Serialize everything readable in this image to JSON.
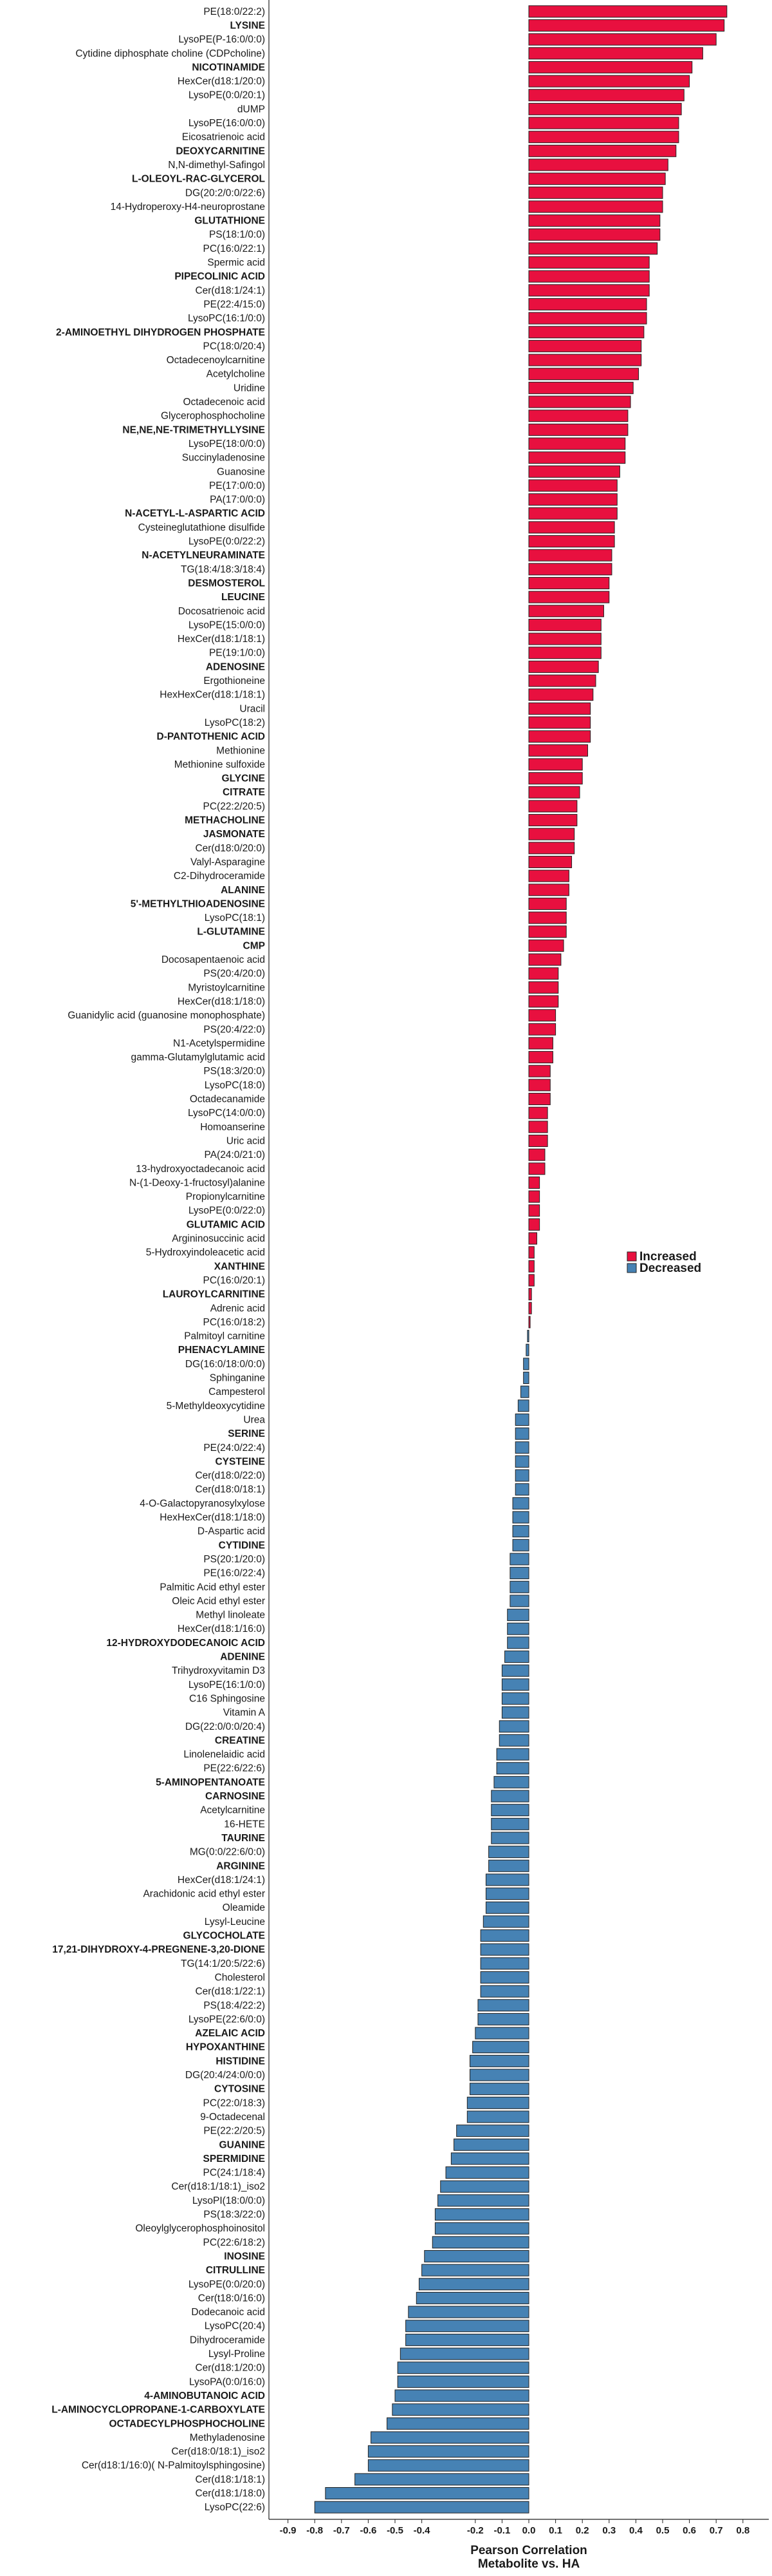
{
  "chart_data": {
    "type": "bar",
    "orientation": "horizontal",
    "xlabel_lines": [
      "Pearson Correlation",
      "Metabolite vs. HA"
    ],
    "ylabel": "",
    "xlim": [
      -0.9,
      0.8
    ],
    "xticks": [
      -0.9,
      -0.8,
      -0.7,
      -0.6,
      -0.5,
      -0.4,
      -0.2,
      -0.1,
      0.0,
      0.1,
      0.2,
      0.3,
      0.4,
      0.5,
      0.6,
      0.7,
      0.8
    ],
    "xtick_labels": [
      "-0.9",
      "-0.8",
      "-0.7",
      "-0.6",
      "-0.5",
      "-0.4",
      "-0.2",
      "-0.1",
      "0.0",
      "0.1",
      "0.2",
      "0.3",
      "0.4",
      "0.5",
      "0.6",
      "0.7",
      "0.8"
    ],
    "grid": false,
    "legend_position": "right",
    "legend": [
      {
        "label": "Increased",
        "color": "#e8103f"
      },
      {
        "label": "Decreased",
        "color": "#4682b4"
      }
    ],
    "colors": {
      "increased": "#e8103f",
      "decreased": "#4682b4",
      "edge": "#222222"
    },
    "categories": [
      {
        "name": "PE(18:0/22:2)",
        "value": 0.74
      },
      {
        "name": "LYSINE",
        "value": 0.73,
        "bold": true
      },
      {
        "name": "LysoPE(P-16:0/0:0)",
        "value": 0.7
      },
      {
        "name": "Cytidine diphosphate choline (CDPcholine)",
        "value": 0.65
      },
      {
        "name": "NICOTINAMIDE",
        "value": 0.61,
        "bold": true
      },
      {
        "name": "HexCer(d18:1/20:0)",
        "value": 0.6
      },
      {
        "name": "LysoPE(0:0/20:1)",
        "value": 0.58
      },
      {
        "name": "dUMP",
        "value": 0.57
      },
      {
        "name": "LysoPE(16:0/0:0)",
        "value": 0.56
      },
      {
        "name": "Eicosatrienoic acid",
        "value": 0.56
      },
      {
        "name": "DEOXYCARNITINE",
        "value": 0.55,
        "bold": true
      },
      {
        "name": "N,N-dimethyl-Safingol",
        "value": 0.52
      },
      {
        "name": "L-OLEOYL-RAC-GLYCEROL",
        "value": 0.51,
        "bold": true
      },
      {
        "name": "DG(20:2/0:0/22:6)",
        "value": 0.5
      },
      {
        "name": "14-Hydroperoxy-H4-neuroprostane",
        "value": 0.5
      },
      {
        "name": "GLUTATHIONE",
        "value": 0.49,
        "bold": true
      },
      {
        "name": "PS(18:1/0:0)",
        "value": 0.49
      },
      {
        "name": "PC(16:0/22:1)",
        "value": 0.48
      },
      {
        "name": "Spermic acid",
        "value": 0.45
      },
      {
        "name": "PIPECOLINIC ACID",
        "value": 0.45,
        "bold": true
      },
      {
        "name": "Cer(d18:1/24:1)",
        "value": 0.45
      },
      {
        "name": "PE(22:4/15:0)",
        "value": 0.44
      },
      {
        "name": "LysoPC(16:1/0:0)",
        "value": 0.44
      },
      {
        "name": "2-AMINOETHYL DIHYDROGEN PHOSPHATE",
        "value": 0.43,
        "bold": true
      },
      {
        "name": "PC(18:0/20:4)",
        "value": 0.42
      },
      {
        "name": "Octadecenoylcarnitine",
        "value": 0.42
      },
      {
        "name": "Acetylcholine",
        "value": 0.41
      },
      {
        "name": "Uridine",
        "value": 0.39
      },
      {
        "name": "Octadecenoic acid",
        "value": 0.38
      },
      {
        "name": "Glycerophosphocholine",
        "value": 0.37
      },
      {
        "name": "NE,NE,NE-TRIMETHYLLYSINE",
        "value": 0.37,
        "bold": true
      },
      {
        "name": "LysoPE(18:0/0:0)",
        "value": 0.36
      },
      {
        "name": "Succinyladenosine",
        "value": 0.36
      },
      {
        "name": "Guanosine",
        "value": 0.34
      },
      {
        "name": "PE(17:0/0:0)",
        "value": 0.33
      },
      {
        "name": "PA(17:0/0:0)",
        "value": 0.33
      },
      {
        "name": "N-ACETYL-L-ASPARTIC ACID",
        "value": 0.33,
        "bold": true
      },
      {
        "name": "Cysteineglutathione disulfide",
        "value": 0.32
      },
      {
        "name": "LysoPE(0:0/22:2)",
        "value": 0.32
      },
      {
        "name": "N-ACETYLNEURAMINATE",
        "value": 0.31,
        "bold": true
      },
      {
        "name": "TG(18:4/18:3/18:4)",
        "value": 0.31
      },
      {
        "name": "DESMOSTEROL",
        "value": 0.3,
        "bold": true
      },
      {
        "name": "LEUCINE",
        "value": 0.3,
        "bold": true
      },
      {
        "name": "Docosatrienoic acid",
        "value": 0.28
      },
      {
        "name": "LysoPE(15:0/0:0)",
        "value": 0.27
      },
      {
        "name": "HexCer(d18:1/18:1)",
        "value": 0.27
      },
      {
        "name": "PE(19:1/0:0)",
        "value": 0.27
      },
      {
        "name": "ADENOSINE",
        "value": 0.26,
        "bold": true
      },
      {
        "name": "Ergothioneine",
        "value": 0.25
      },
      {
        "name": "HexHexCer(d18:1/18:1)",
        "value": 0.24
      },
      {
        "name": "Uracil",
        "value": 0.23
      },
      {
        "name": "LysoPC(18:2)",
        "value": 0.23
      },
      {
        "name": "D-PANTOTHENIC ACID",
        "value": 0.23,
        "bold": true
      },
      {
        "name": "Methionine",
        "value": 0.22
      },
      {
        "name": "Methionine sulfoxide",
        "value": 0.2
      },
      {
        "name": "GLYCINE",
        "value": 0.2,
        "bold": true
      },
      {
        "name": "CITRATE",
        "value": 0.19,
        "bold": true
      },
      {
        "name": "PC(22:2/20:5)",
        "value": 0.18
      },
      {
        "name": "METHACHOLINE",
        "value": 0.18,
        "bold": true
      },
      {
        "name": "JASMONATE",
        "value": 0.17,
        "bold": true
      },
      {
        "name": "Cer(d18:0/20:0)",
        "value": 0.17
      },
      {
        "name": "Valyl-Asparagine",
        "value": 0.16
      },
      {
        "name": "C2-Dihydroceramide",
        "value": 0.15
      },
      {
        "name": "ALANINE",
        "value": 0.15,
        "bold": true
      },
      {
        "name": "5'-METHYLTHIOADENOSINE",
        "value": 0.14,
        "bold": true
      },
      {
        "name": "LysoPC(18:1)",
        "value": 0.14
      },
      {
        "name": "L-GLUTAMINE",
        "value": 0.14,
        "bold": true
      },
      {
        "name": "CMP",
        "value": 0.13,
        "bold": true
      },
      {
        "name": "Docosapentaenoic acid",
        "value": 0.12
      },
      {
        "name": "PS(20:4/20:0)",
        "value": 0.11
      },
      {
        "name": "Myristoylcarnitine",
        "value": 0.11
      },
      {
        "name": "HexCer(d18:1/18:0)",
        "value": 0.11
      },
      {
        "name": "Guanidylic acid (guanosine monophosphate)",
        "value": 0.1
      },
      {
        "name": "PS(20:4/22:0)",
        "value": 0.1
      },
      {
        "name": "N1-Acetylspermidine",
        "value": 0.09
      },
      {
        "name": "gamma-Glutamylglutamic acid",
        "value": 0.09
      },
      {
        "name": "PS(18:3/20:0)",
        "value": 0.08
      },
      {
        "name": "LysoPC(18:0)",
        "value": 0.08
      },
      {
        "name": "Octadecanamide",
        "value": 0.08
      },
      {
        "name": "LysoPC(14:0/0:0)",
        "value": 0.07
      },
      {
        "name": "Homoanserine",
        "value": 0.07
      },
      {
        "name": "Uric acid",
        "value": 0.07
      },
      {
        "name": "PA(24:0/21:0)",
        "value": 0.06
      },
      {
        "name": "13-hydroxyoctadecanoic acid",
        "value": 0.06
      },
      {
        "name": "N-(1-Deoxy-1-fructosyl)alanine",
        "value": 0.04
      },
      {
        "name": "Propionylcarnitine",
        "value": 0.04
      },
      {
        "name": "LysoPE(0:0/22:0)",
        "value": 0.04
      },
      {
        "name": "GLUTAMIC ACID",
        "value": 0.04,
        "bold": true
      },
      {
        "name": "Argininosuccinic acid",
        "value": 0.03
      },
      {
        "name": "5-Hydroxyindoleacetic acid",
        "value": 0.02
      },
      {
        "name": "XANTHINE",
        "value": 0.02,
        "bold": true
      },
      {
        "name": "PC(16:0/20:1)",
        "value": 0.02
      },
      {
        "name": "LAUROYLCARNITINE",
        "value": 0.01,
        "bold": true
      },
      {
        "name": "Adrenic acid",
        "value": 0.01
      },
      {
        "name": "PC(16:0/18:2)",
        "value": 0.005
      },
      {
        "name": "Palmitoyl carnitine",
        "value": -0.005
      },
      {
        "name": "PHENACYLAMINE",
        "value": -0.01,
        "bold": true
      },
      {
        "name": "DG(16:0/18:0/0:0)",
        "value": -0.02
      },
      {
        "name": "Sphinganine",
        "value": -0.02
      },
      {
        "name": "Campesterol",
        "value": -0.03
      },
      {
        "name": "5-Methyldeoxycytidine",
        "value": -0.04
      },
      {
        "name": "Urea",
        "value": -0.05
      },
      {
        "name": "SERINE",
        "value": -0.05,
        "bold": true
      },
      {
        "name": "PE(24:0/22:4)",
        "value": -0.05
      },
      {
        "name": "CYSTEINE",
        "value": -0.05,
        "bold": true
      },
      {
        "name": "Cer(d18:0/22:0)",
        "value": -0.05
      },
      {
        "name": "Cer(d18:0/18:1)",
        "value": -0.05
      },
      {
        "name": "4-O-Galactopyranosylxylose",
        "value": -0.06
      },
      {
        "name": "HexHexCer(d18:1/18:0)",
        "value": -0.06
      },
      {
        "name": "D-Aspartic acid",
        "value": -0.06
      },
      {
        "name": "CYTIDINE",
        "value": -0.06,
        "bold": true
      },
      {
        "name": "PS(20:1/20:0)",
        "value": -0.07
      },
      {
        "name": "PE(16:0/22:4)",
        "value": -0.07
      },
      {
        "name": "Palmitic Acid ethyl ester",
        "value": -0.07
      },
      {
        "name": "Oleic Acid ethyl ester",
        "value": -0.07
      },
      {
        "name": "Methyl linoleate",
        "value": -0.08
      },
      {
        "name": "HexCer(d18:1/16:0)",
        "value": -0.08
      },
      {
        "name": "12-HYDROXYDODECANOIC ACID",
        "value": -0.08,
        "bold": true
      },
      {
        "name": "ADENINE",
        "value": -0.09,
        "bold": true
      },
      {
        "name": "Trihydroxyvitamin D3",
        "value": -0.1
      },
      {
        "name": "LysoPE(16:1/0:0)",
        "value": -0.1
      },
      {
        "name": "C16 Sphingosine",
        "value": -0.1
      },
      {
        "name": "Vitamin A",
        "value": -0.1
      },
      {
        "name": "DG(22:0/0:0/20:4)",
        "value": -0.11
      },
      {
        "name": "CREATINE",
        "value": -0.11,
        "bold": true
      },
      {
        "name": "Linolenelaidic acid",
        "value": -0.12
      },
      {
        "name": "PE(22:6/22:6)",
        "value": -0.12
      },
      {
        "name": "5-AMINOPENTANOATE",
        "value": -0.13,
        "bold": true
      },
      {
        "name": "CARNOSINE",
        "value": -0.14,
        "bold": true
      },
      {
        "name": "Acetylcarnitine",
        "value": -0.14
      },
      {
        "name": "16-HETE",
        "value": -0.14
      },
      {
        "name": "TAURINE",
        "value": -0.14,
        "bold": true
      },
      {
        "name": "MG(0:0/22:6/0:0)",
        "value": -0.15
      },
      {
        "name": "ARGININE",
        "value": -0.15,
        "bold": true
      },
      {
        "name": "HexCer(d18:1/24:1)",
        "value": -0.16
      },
      {
        "name": "Arachidonic acid ethyl ester",
        "value": -0.16
      },
      {
        "name": "Oleamide",
        "value": -0.16
      },
      {
        "name": "Lysyl-Leucine",
        "value": -0.17
      },
      {
        "name": "GLYCOCHOLATE",
        "value": -0.18,
        "bold": true
      },
      {
        "name": "17,21-DIHYDROXY-4-PREGNENE-3,20-DIONE",
        "value": -0.18,
        "bold": true
      },
      {
        "name": "TG(14:1/20:5/22:6)",
        "value": -0.18
      },
      {
        "name": "Cholesterol",
        "value": -0.18
      },
      {
        "name": "Cer(d18:1/22:1)",
        "value": -0.18
      },
      {
        "name": "PS(18:4/22:2)",
        "value": -0.19
      },
      {
        "name": "LysoPE(22:6/0:0)",
        "value": -0.19
      },
      {
        "name": "AZELAIC ACID",
        "value": -0.2,
        "bold": true
      },
      {
        "name": "HYPOXANTHINE",
        "value": -0.21,
        "bold": true
      },
      {
        "name": "HISTIDINE",
        "value": -0.22,
        "bold": true
      },
      {
        "name": "DG(20:4/24:0/0:0)",
        "value": -0.22
      },
      {
        "name": "CYTOSINE",
        "value": -0.22,
        "bold": true
      },
      {
        "name": "PC(22:0/18:3)",
        "value": -0.23
      },
      {
        "name": "9-Octadecenal",
        "value": -0.23
      },
      {
        "name": "PE(22:2/20:5)",
        "value": -0.27
      },
      {
        "name": "GUANINE",
        "value": -0.28,
        "bold": true
      },
      {
        "name": "SPERMIDINE",
        "value": -0.29,
        "bold": true
      },
      {
        "name": "PC(24:1/18:4)",
        "value": -0.31
      },
      {
        "name": "Cer(d18:1/18:1)_iso2",
        "value": -0.33
      },
      {
        "name": "LysoPI(18:0/0:0)",
        "value": -0.34
      },
      {
        "name": "PS(18:3/22:0)",
        "value": -0.35
      },
      {
        "name": "Oleoylglycerophosphoinositol",
        "value": -0.35
      },
      {
        "name": "PC(22:6/18:2)",
        "value": -0.36
      },
      {
        "name": "INOSINE",
        "value": -0.39,
        "bold": true
      },
      {
        "name": "CITRULLINE",
        "value": -0.4,
        "bold": true
      },
      {
        "name": "LysoPE(0:0/20:0)",
        "value": -0.41
      },
      {
        "name": "Cer(t18:0/16:0)",
        "value": -0.42
      },
      {
        "name": "Dodecanoic acid",
        "value": -0.45
      },
      {
        "name": "LysoPC(20:4)",
        "value": -0.46
      },
      {
        "name": "Dihydroceramide",
        "value": -0.46
      },
      {
        "name": "Lysyl-Proline",
        "value": -0.48
      },
      {
        "name": "Cer(d18:1/20:0)",
        "value": -0.49
      },
      {
        "name": "LysoPA(0:0/16:0)",
        "value": -0.49
      },
      {
        "name": "4-AMINOBUTANOIC ACID",
        "value": -0.5,
        "bold": true
      },
      {
        "name": "L-AMINOCYCLOPROPANE-1-CARBOXYLATE",
        "value": -0.51,
        "bold": true
      },
      {
        "name": "OCTADECYLPHOSPHOCHOLINE",
        "value": -0.53,
        "bold": true
      },
      {
        "name": "Methyladenosine",
        "value": -0.59
      },
      {
        "name": "Cer(d18:0/18:1)_iso2",
        "value": -0.6
      },
      {
        "name": "Cer(d18:1/16:0)( N-Palmitoylsphingosine)",
        "value": -0.6
      },
      {
        "name": "Cer(d18:1/18:1)",
        "value": -0.65
      },
      {
        "name": "Cer(d18:1/18:0)",
        "value": -0.76
      },
      {
        "name": "LysoPC(22:6)",
        "value": -0.8
      }
    ]
  }
}
